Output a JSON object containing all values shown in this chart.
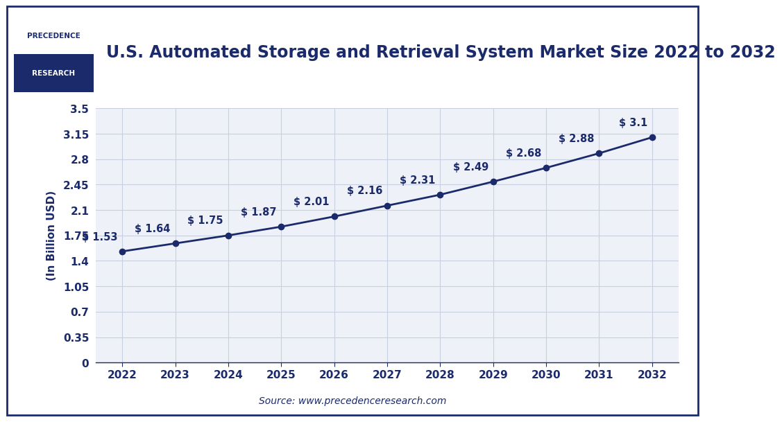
{
  "title": "U.S. Automated Storage and Retrieval System Market Size 2022 to 2032",
  "ylabel": "(In Billion USD)",
  "source": "Source: www.precedenceresearch.com",
  "years": [
    2022,
    2023,
    2024,
    2025,
    2026,
    2027,
    2028,
    2029,
    2030,
    2031,
    2032
  ],
  "values": [
    1.53,
    1.64,
    1.75,
    1.87,
    2.01,
    2.16,
    2.31,
    2.49,
    2.68,
    2.88,
    3.1
  ],
  "annotations": [
    "$ 1.53",
    "$ 1.64",
    "$ 1.75",
    "$ 1.87",
    "$ 2.01",
    "$ 2.16",
    "$ 2.31",
    "$ 2.49",
    "$ 2.68",
    "$ 2.88",
    "$ 3.1"
  ],
  "yticks": [
    0,
    0.35,
    0.7,
    1.05,
    1.4,
    1.75,
    2.1,
    2.45,
    2.8,
    3.15,
    3.5
  ],
  "ytick_labels": [
    "0",
    "0.35",
    "0.7",
    "1.05",
    "1.4",
    "1.75",
    "2.1",
    "2.45",
    "2.8",
    "3.15",
    "3.5"
  ],
  "line_color": "#1b2a6b",
  "marker_color": "#1b2a6b",
  "grid_color": "#c8d0e0",
  "background_color": "#ffffff",
  "plot_bg_color": "#eef1f8",
  "title_color": "#1b2a6b",
  "label_color": "#1b2a6b",
  "annotation_color": "#1b2a6b",
  "source_color": "#1b2a6b",
  "border_color": "#1b2a6b",
  "logo_bg": "#1b2a6b",
  "title_fontsize": 17,
  "label_fontsize": 11,
  "tick_fontsize": 11,
  "annotation_fontsize": 10.5,
  "source_fontsize": 10,
  "ylim": [
    0,
    3.5
  ],
  "xlim": [
    2021.5,
    2032.5
  ]
}
